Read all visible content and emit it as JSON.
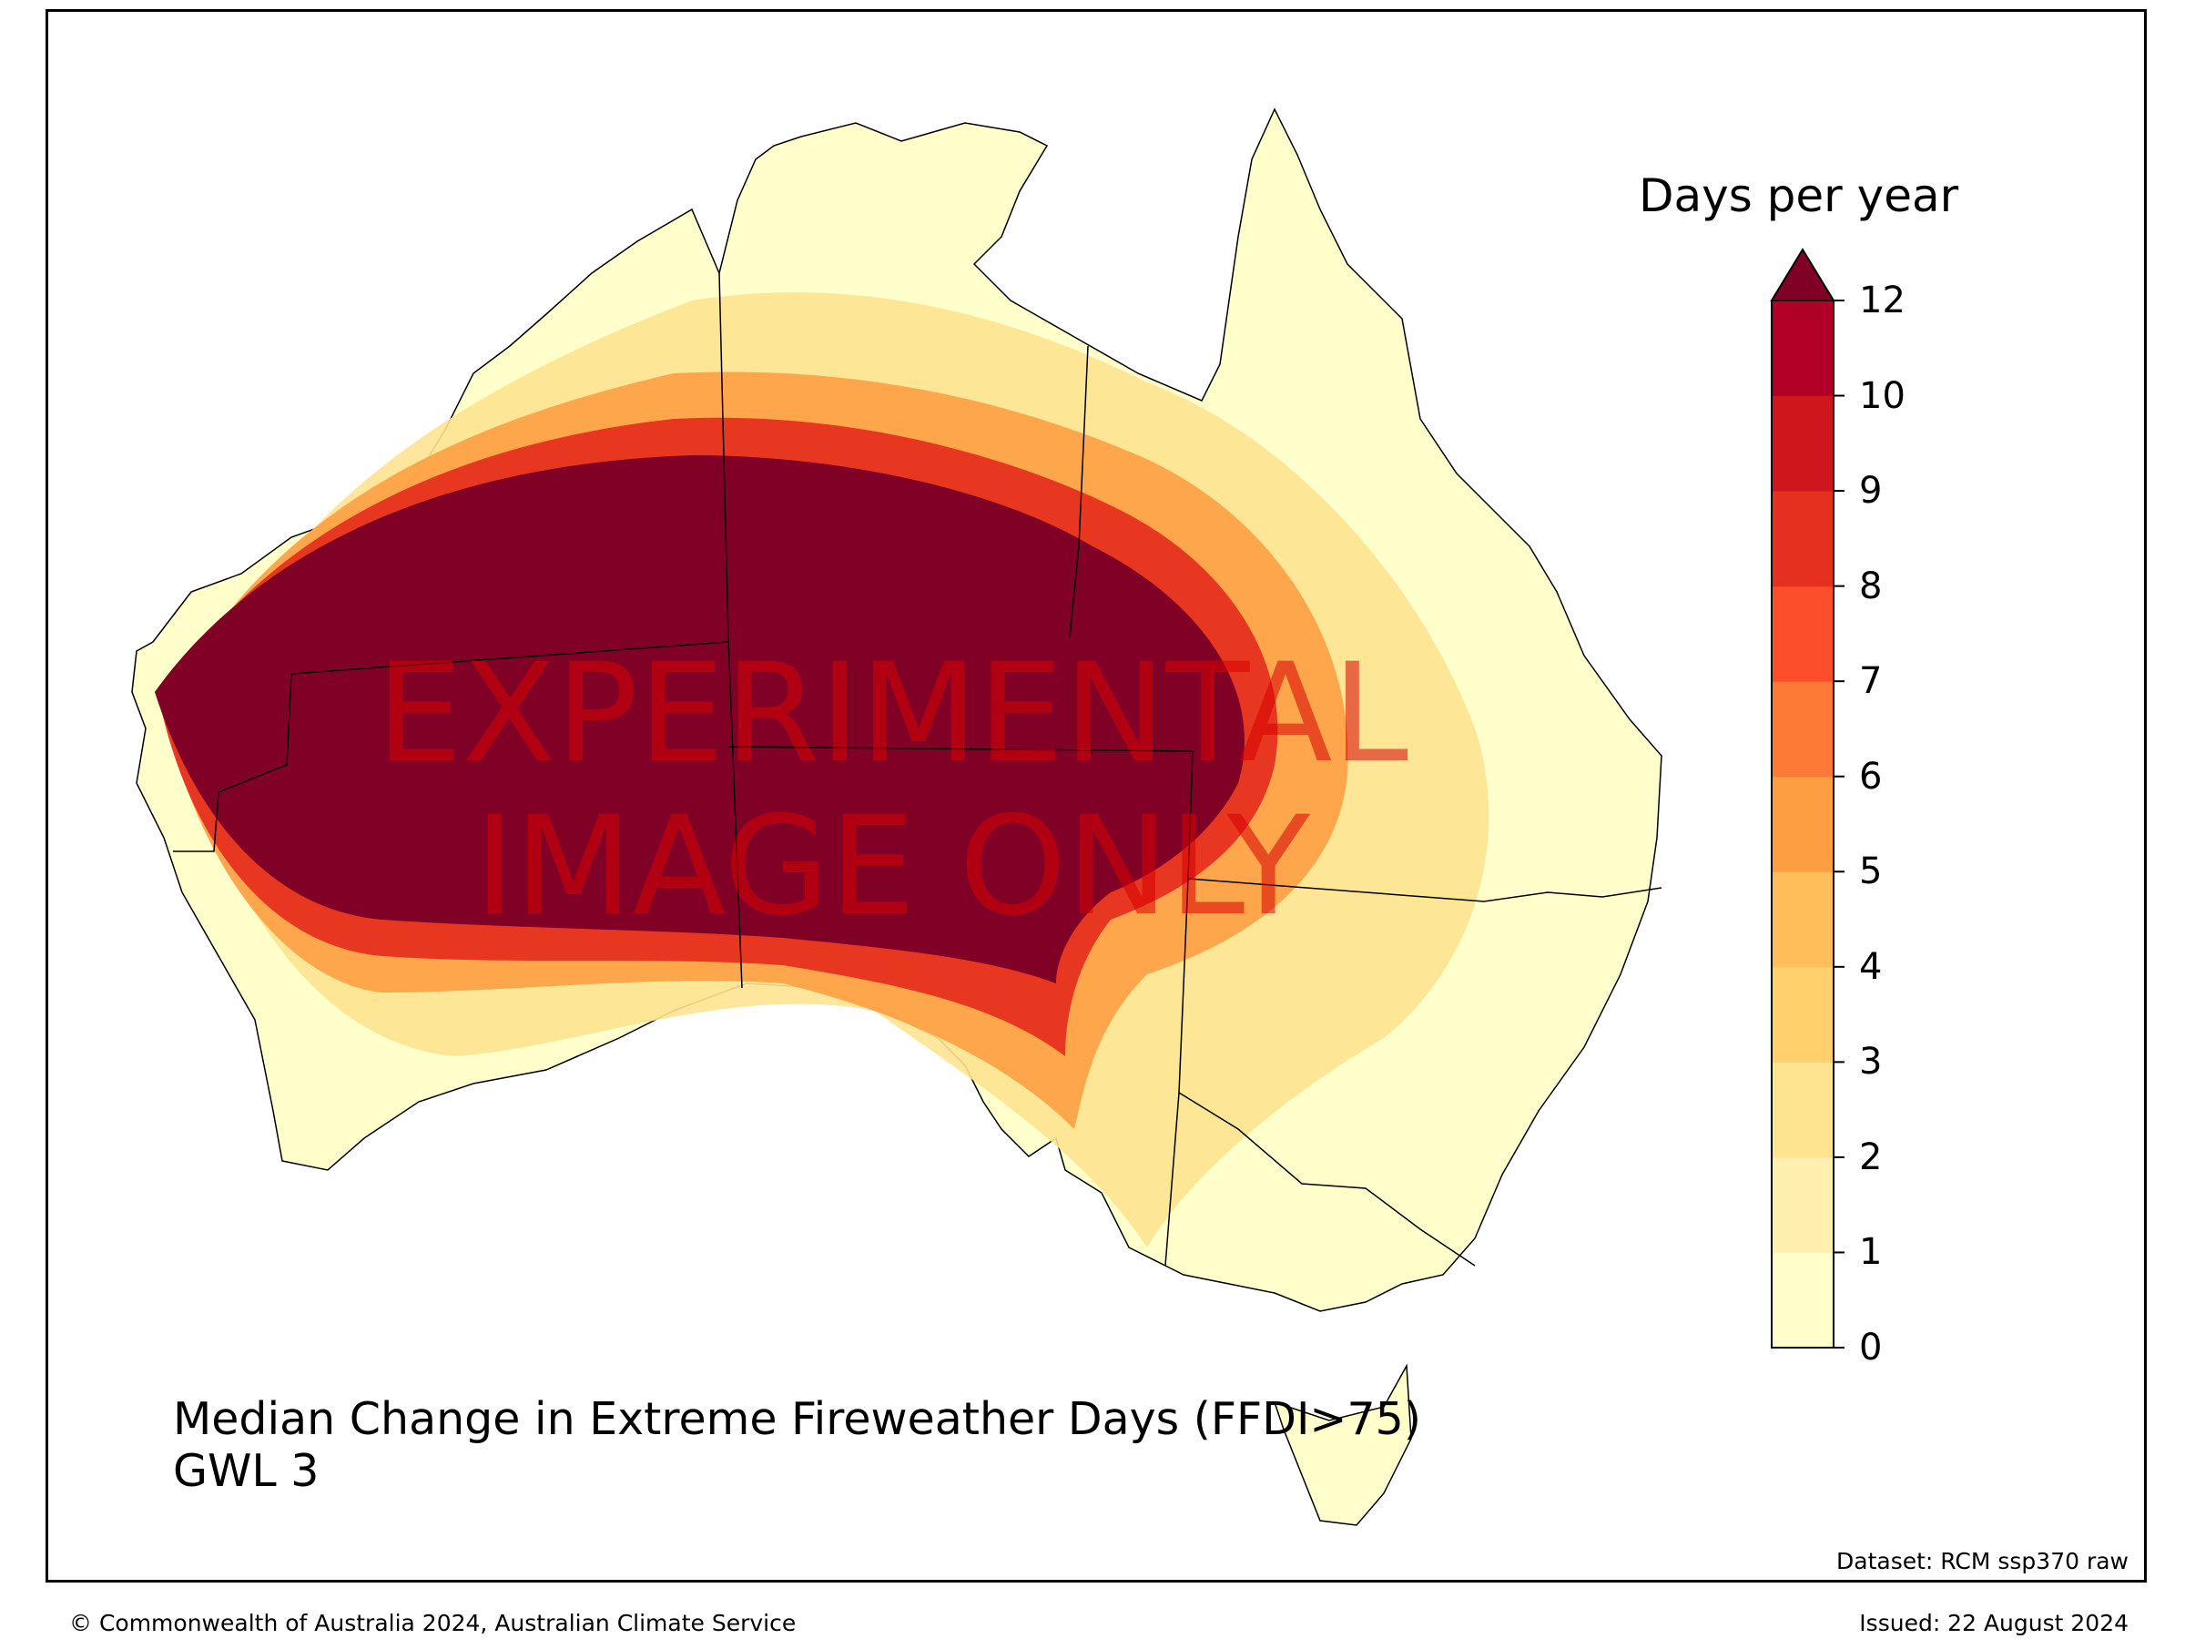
{
  "map": {
    "title_line1": "Median Change in Extreme Fireweather Days (FFDI>75)",
    "title_line2": "GWL 3",
    "watermark_line1": "EXPERIMENTAL",
    "watermark_line2": "IMAGE ONLY",
    "dataset": "Dataset: RCM ssp370 raw",
    "footer_left": "© Commonwealth of Australia 2024, Australian Climate Service",
    "footer_right": "Issued: 22 August 2024"
  },
  "colorbar": {
    "title": "Days per year",
    "ticks": [
      "0",
      "1",
      "2",
      "3",
      "4",
      "5",
      "6",
      "7",
      "8",
      "9",
      "10",
      "12"
    ],
    "colors": [
      "#ffffcc",
      "#fff0b0",
      "#fee391",
      "#fed16c",
      "#febe59",
      "#fd9e43",
      "#fd7a36",
      "#fc4e2a",
      "#e6301f",
      "#d0161d",
      "#b00026"
    ],
    "extend_color": "#800026"
  }
}
